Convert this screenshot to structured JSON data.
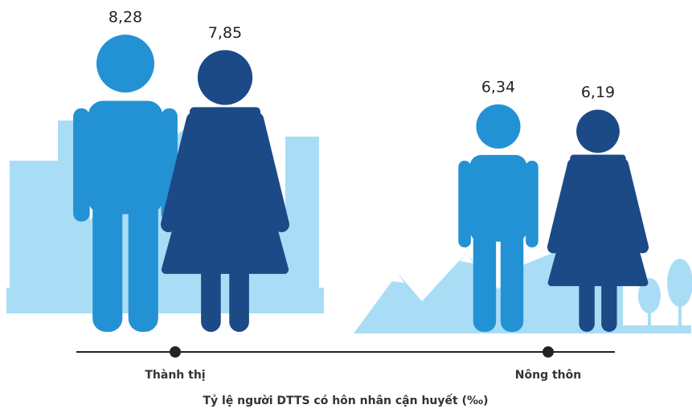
{
  "chart_data": {
    "type": "pictogram",
    "title": "Tỷ lệ người DTTS có hôn nhân cận huyết (‰)",
    "categories": [
      "Thành thị",
      "Nông thôn"
    ],
    "series": [
      {
        "color": "#2392d4",
        "values": [
          8.28,
          6.34
        ],
        "value_labels": [
          "8,28",
          "6,34"
        ]
      },
      {
        "color": "#1c4a87",
        "values": [
          7.85,
          6.19
        ],
        "value_labels": [
          "7,85",
          "6,19"
        ]
      }
    ]
  }
}
